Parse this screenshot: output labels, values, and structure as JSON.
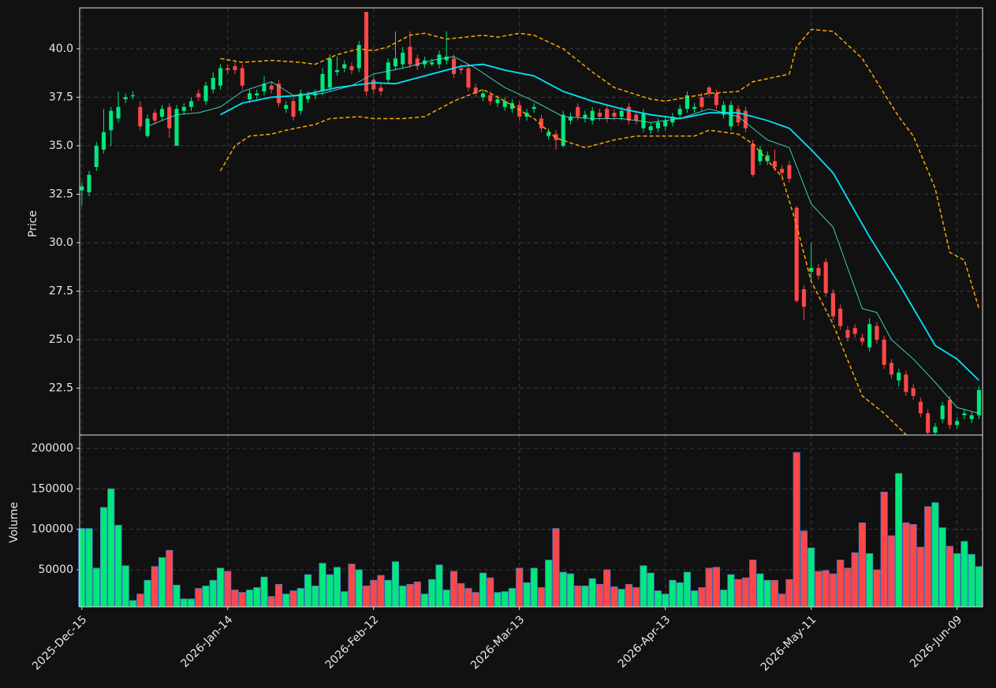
{
  "chart_data": {
    "type": "candlestick",
    "categories": [
      "2025-Dec-15",
      null,
      null,
      null,
      null,
      null,
      null,
      null,
      null,
      null,
      null,
      null,
      null,
      null,
      null,
      null,
      null,
      null,
      null,
      null,
      "2026-Jan-14",
      null,
      null,
      null,
      null,
      null,
      null,
      null,
      null,
      null,
      null,
      null,
      null,
      null,
      null,
      null,
      null,
      null,
      null,
      null,
      "2026-Feb-12",
      null,
      null,
      null,
      null,
      null,
      null,
      null,
      null,
      null,
      null,
      null,
      null,
      null,
      null,
      null,
      null,
      null,
      null,
      null,
      "2026-Mar-13",
      null,
      null,
      null,
      null,
      null,
      null,
      null,
      null,
      null,
      null,
      null,
      null,
      null,
      null,
      null,
      null,
      null,
      null,
      null,
      "2026-Apr-13",
      null,
      null,
      null,
      null,
      null,
      null,
      null,
      null,
      null,
      null,
      null,
      null,
      null,
      null,
      null,
      null,
      null,
      null,
      null,
      "2026-May-11",
      null,
      null,
      null,
      null,
      null,
      null,
      null,
      null,
      null,
      null,
      null,
      null,
      null,
      null,
      null,
      null,
      null,
      null,
      null,
      "2026-Jun-09",
      null,
      null,
      null
    ],
    "xlim": [
      -0.3,
      123.5
    ],
    "open": [
      32.7,
      32.6,
      33.9,
      34.8,
      35.8,
      36.4,
      37.4,
      37.55,
      37.0,
      35.5,
      36.7,
      36.5,
      37.0,
      35.0,
      36.8,
      37.0,
      37.7,
      37.3,
      37.9,
      38.1,
      39.0,
      39.1,
      39.0,
      37.4,
      37.6,
      37.8,
      38.1,
      38.2,
      36.9,
      37.3,
      36.8,
      37.4,
      37.6,
      37.8,
      38.0,
      38.8,
      39.0,
      39.1,
      39.0,
      41.9,
      38.4,
      38.0,
      38.4,
      39.1,
      39.2,
      40.1,
      39.5,
      39.2,
      39.2,
      39.2,
      39.4,
      39.5,
      39.0,
      39.0,
      38.0,
      37.5,
      37.6,
      37.2,
      37.0,
      36.9,
      37.1,
      36.5,
      36.9,
      36.4,
      35.5,
      35.6,
      35.0,
      36.3,
      37.0,
      36.4,
      36.3,
      36.7,
      36.9,
      36.7,
      36.5,
      37.0,
      36.6,
      35.9,
      35.8,
      35.9,
      36.0,
      36.2,
      36.6,
      36.9,
      36.9,
      37.5,
      38.0,
      37.7,
      36.6,
      36.0,
      36.9,
      36.8,
      35.1,
      34.2,
      34.2,
      34.2,
      33.8,
      34.0,
      31.8,
      27.6,
      28.5,
      28.7,
      29.0,
      27.4,
      26.6,
      25.5,
      25.6,
      25.1,
      24.6,
      25.7,
      25.0,
      23.8,
      22.9,
      23.2,
      22.5,
      21.8,
      21.2,
      20.2,
      20.9,
      21.9,
      20.6,
      21.1,
      20.9,
      21.1
    ],
    "high": [
      33.1,
      33.7,
      35.2,
      36.9,
      37.0,
      37.8,
      37.7,
      37.8,
      37.3,
      36.6,
      36.9,
      37.1,
      37.2,
      37.1,
      37.2,
      37.5,
      37.9,
      38.3,
      38.8,
      39.2,
      39.2,
      39.3,
      39.2,
      37.9,
      37.9,
      38.6,
      38.3,
      38.4,
      37.3,
      37.5,
      37.9,
      37.8,
      37.9,
      39.0,
      39.7,
      39.6,
      39.4,
      39.3,
      40.4,
      41.9,
      38.6,
      38.2,
      39.5,
      40.9,
      40.1,
      40.9,
      39.7,
      39.6,
      39.5,
      39.9,
      40.9,
      39.7,
      39.2,
      39.2,
      38.2,
      37.9,
      37.8,
      37.6,
      37.5,
      37.4,
      37.3,
      36.9,
      37.2,
      36.6,
      35.9,
      35.8,
      36.8,
      36.7,
      37.2,
      36.8,
      37.0,
      36.9,
      37.1,
      36.9,
      37.0,
      37.2,
      36.8,
      36.9,
      36.2,
      36.4,
      36.5,
      36.7,
      37.1,
      37.8,
      37.2,
      37.7,
      38.1,
      37.9,
      37.3,
      37.3,
      37.1,
      37.0,
      35.3,
      35.0,
      34.7,
      34.8,
      34.0,
      34.2,
      31.9,
      27.8,
      30.0,
      28.9,
      29.2,
      27.6,
      26.8,
      25.7,
      25.8,
      25.3,
      26.1,
      25.9,
      25.2,
      24.0,
      23.5,
      23.4,
      22.7,
      22.0,
      21.4,
      20.7,
      21.8,
      22.1,
      21.0,
      21.4,
      21.3,
      22.6
    ],
    "low": [
      31.9,
      32.4,
      33.7,
      34.6,
      35.0,
      36.2,
      37.2,
      37.4,
      35.8,
      35.4,
      36.1,
      36.3,
      35.4,
      35.0,
      36.6,
      36.8,
      37.3,
      37.1,
      37.7,
      37.9,
      38.7,
      38.7,
      37.9,
      37.2,
      37.4,
      37.6,
      37.7,
      37.0,
      36.7,
      36.3,
      36.6,
      37.2,
      37.4,
      37.6,
      37.8,
      38.6,
      38.8,
      38.7,
      38.8,
      37.6,
      37.7,
      37.6,
      38.2,
      38.9,
      39.0,
      39.0,
      38.9,
      39.0,
      39.1,
      39.0,
      39.2,
      38.5,
      38.7,
      37.8,
      37.5,
      37.3,
      37.1,
      37.0,
      36.8,
      36.7,
      36.3,
      36.3,
      36.7,
      35.7,
      35.3,
      34.8,
      34.9,
      36.1,
      36.3,
      36.2,
      36.1,
      36.3,
      36.2,
      36.3,
      36.3,
      36.1,
      36.1,
      35.7,
      35.6,
      35.7,
      35.8,
      36.0,
      36.4,
      36.7,
      36.7,
      36.8,
      37.5,
      36.9,
      36.4,
      35.8,
      36.0,
      35.7,
      33.4,
      34.0,
      34.0,
      33.7,
      33.4,
      33.1,
      26.9,
      26.0,
      28.0,
      28.1,
      27.2,
      26.0,
      25.5,
      24.9,
      25.1,
      24.7,
      24.4,
      24.8,
      23.5,
      23.0,
      22.6,
      22.1,
      21.9,
      21.0,
      20.0,
      20.0,
      20.7,
      20.4,
      20.4,
      20.9,
      20.7,
      20.9
    ],
    "close": [
      32.9,
      33.5,
      35.0,
      35.7,
      36.8,
      37.0,
      37.5,
      37.6,
      36.0,
      36.4,
      36.3,
      36.9,
      35.9,
      36.9,
      37.0,
      37.3,
      37.5,
      38.1,
      38.5,
      39.0,
      38.9,
      38.9,
      38.1,
      37.7,
      37.7,
      38.2,
      37.9,
      37.2,
      37.1,
      36.5,
      37.7,
      37.6,
      37.7,
      38.7,
      39.5,
      38.9,
      39.2,
      38.9,
      40.2,
      37.8,
      37.9,
      37.8,
      39.3,
      39.5,
      39.8,
      39.2,
      39.1,
      39.4,
      39.3,
      39.7,
      39.6,
      38.7,
      38.9,
      38.0,
      37.7,
      37.7,
      37.3,
      37.4,
      37.3,
      37.2,
      36.5,
      36.7,
      37.0,
      35.9,
      35.7,
      35.3,
      36.6,
      36.5,
      36.5,
      36.6,
      36.8,
      36.5,
      36.4,
      36.5,
      36.8,
      36.3,
      36.3,
      36.7,
      36.0,
      36.2,
      36.3,
      36.5,
      36.9,
      37.6,
      37.0,
      37.0,
      37.7,
      37.1,
      37.1,
      37.1,
      36.2,
      35.9,
      33.5,
      34.8,
      34.5,
      33.9,
      33.6,
      33.3,
      27.0,
      26.7,
      28.7,
      28.3,
      27.4,
      26.2,
      25.7,
      25.1,
      25.3,
      24.9,
      25.8,
      25.0,
      23.7,
      23.2,
      23.3,
      22.3,
      22.1,
      21.2,
      20.2,
      20.5,
      21.6,
      20.6,
      20.8,
      21.2,
      21.1,
      22.4
    ],
    "up_color": "#00e87c",
    "down_color": "#ff4747",
    "volume": [
      101000,
      101000,
      52000,
      127000,
      150000,
      105000,
      55000,
      12000,
      20000,
      37000,
      54000,
      65000,
      74000,
      31000,
      14000,
      14000,
      27000,
      30000,
      37000,
      52000,
      48000,
      25000,
      22000,
      25000,
      28000,
      41000,
      17000,
      32000,
      20000,
      24000,
      27000,
      44000,
      30000,
      58000,
      44000,
      53000,
      23000,
      57000,
      50000,
      30000,
      37000,
      43000,
      37000,
      60000,
      30000,
      32000,
      35000,
      20000,
      38000,
      56000,
      25000,
      48000,
      33000,
      27000,
      22000,
      46000,
      40000,
      22000,
      23000,
      27000,
      52000,
      34000,
      52000,
      28000,
      62000,
      101000,
      47000,
      45000,
      30000,
      30000,
      39000,
      32000,
      50000,
      29000,
      26000,
      32000,
      28000,
      55000,
      46000,
      24000,
      20000,
      37000,
      34000,
      47000,
      24000,
      28000,
      52000,
      53000,
      25000,
      44000,
      38000,
      40000,
      62000,
      45000,
      37000,
      37000,
      20000,
      38000,
      195000,
      98000,
      77000,
      48000,
      49000,
      45000,
      62000,
      52000,
      71000,
      108000,
      70000,
      50000,
      146000,
      92000,
      169000,
      108000,
      106000,
      78000,
      128000,
      133000,
      102000,
      79000,
      70000,
      85000,
      69000,
      54000
    ],
    "ylabel": "Price",
    "ylim": [
      20.08,
      42.11
    ],
    "yticks": [
      22.5,
      {
        "value": 25,
        "label": "25.0"
      },
      27.5,
      {
        "value": 30,
        "label": "30.0"
      },
      32.5,
      {
        "value": 35,
        "label": "35.0"
      },
      37.5,
      {
        "value": 40,
        "label": "40.0"
      }
    ],
    "y2label": "Volume",
    "y2lim": [
      4200,
      216500
    ],
    "y2ticks": [
      50000,
      100000,
      150000,
      200000
    ],
    "grid": true,
    "series": [
      {
        "color": "#00e5ff",
        "width": 1.8,
        "dash": false,
        "x": [
          19,
          22,
          26,
          30,
          35,
          40,
          43,
          47,
          52,
          55,
          58,
          62,
          66,
          70,
          74,
          78,
          82,
          86,
          90,
          94,
          97,
          100,
          103,
          108,
          112,
          117,
          120,
          123
        ],
        "values": [
          36.6,
          37.2,
          37.5,
          37.6,
          38.0,
          38.25,
          38.2,
          38.6,
          39.1,
          39.2,
          38.9,
          38.6,
          37.8,
          37.3,
          36.9,
          36.6,
          36.4,
          36.7,
          36.7,
          36.3,
          35.9,
          34.8,
          33.6,
          30.3,
          27.9,
          24.7,
          24.0,
          22.9
        ]
      },
      {
        "color": "#3fe0cf",
        "width": 0.9,
        "dash": false,
        "x": [
          9,
          13,
          16,
          19,
          22,
          26,
          29,
          33,
          37,
          40,
          44,
          48,
          51,
          54,
          58,
          62,
          66,
          70,
          74,
          78,
          82,
          86,
          90,
          94,
          97,
          100,
          103,
          107,
          109,
          111,
          114,
          117,
          120,
          123
        ],
        "values": [
          36.0,
          36.6,
          36.7,
          37.0,
          37.8,
          38.3,
          37.6,
          37.7,
          38.1,
          38.7,
          39.0,
          39.4,
          39.6,
          39.0,
          38.0,
          37.3,
          36.5,
          36.4,
          36.4,
          36.2,
          36.4,
          36.9,
          36.5,
          35.3,
          34.9,
          32.0,
          30.8,
          26.6,
          26.4,
          25.0,
          24.0,
          22.8,
          21.5,
          21.2
        ]
      },
      {
        "color": "#ffa500",
        "width": 1.5,
        "dash": true,
        "x": [
          19,
          22,
          26,
          30,
          32,
          35,
          38,
          40,
          42,
          45,
          47,
          50,
          55,
          57,
          60,
          62,
          66,
          70,
          73,
          78,
          80,
          83,
          86,
          90,
          92,
          97,
          98,
          100,
          103,
          107,
          112,
          114,
          117,
          119,
          121,
          123
        ],
        "values": [
          39.5,
          39.3,
          39.4,
          39.3,
          39.2,
          39.7,
          40.0,
          39.9,
          40.1,
          40.7,
          40.8,
          40.5,
          40.7,
          40.6,
          40.8,
          40.7,
          40.0,
          38.8,
          38.0,
          37.4,
          37.3,
          37.5,
          37.7,
          37.8,
          38.3,
          38.7,
          40.1,
          41.0,
          40.9,
          39.5,
          36.5,
          35.5,
          32.8,
          29.5,
          29.1,
          26.6
        ]
      },
      {
        "color": "#ffa500",
        "width": 1.5,
        "dash": true,
        "x": [
          19,
          21,
          23,
          26,
          28,
          32,
          34,
          38,
          40,
          44,
          47,
          51,
          53,
          55,
          58,
          62,
          65,
          69,
          73,
          76,
          80,
          84,
          86,
          90,
          92,
          96,
          98,
          100,
          103,
          107,
          110,
          113
        ],
        "values": [
          33.7,
          35.0,
          35.5,
          35.6,
          35.8,
          36.1,
          36.4,
          36.5,
          36.4,
          36.4,
          36.5,
          37.3,
          37.6,
          37.9,
          37.3,
          36.4,
          35.4,
          34.9,
          35.3,
          35.5,
          35.5,
          35.5,
          35.8,
          35.6,
          35.1,
          33.4,
          30.9,
          28.0,
          25.8,
          22.1,
          21.2,
          20.1
        ]
      }
    ]
  }
}
